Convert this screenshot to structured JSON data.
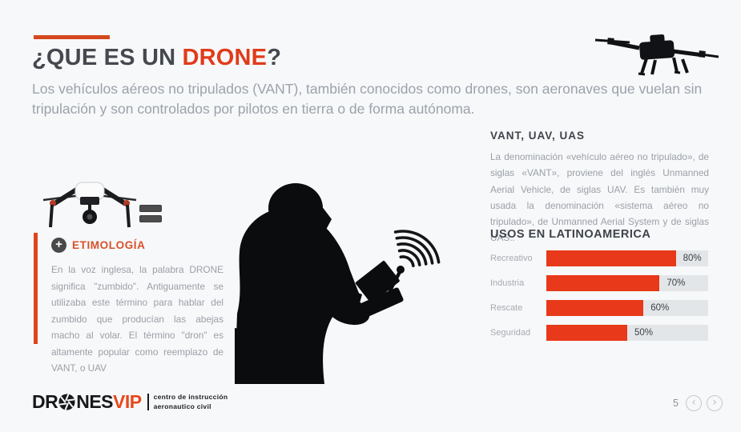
{
  "slide": {
    "title_prefix": "¿QUE ES UN ",
    "title_highlight": "DRONE",
    "title_suffix": "?",
    "subtitle": "Los vehículos aéreos no tripulados (VANT), también conocidos como drones, son aeronaves que vuelan sin tripulación y son controlados por pilotos en tierra o de forma autónoma."
  },
  "etimologia": {
    "heading": "ETIMOLOGÍA",
    "plus_glyph": "+",
    "body": "En la voz inglesa, la palabra DRONE significa \"zumbido\". Antiguamente se utilizaba este término para hablar del zumbido que producían las abejas macho al volar. El término \"dron\" es altamente popular como reemplazo de VANT, o UAV"
  },
  "vant": {
    "heading": "VANT, UAV, UAS",
    "body": "La denominación «vehículo aéreo no tripulado», de siglas «VANT», proviene del inglés Unmanned Aerial Vehicle, de siglas UAV. Es también muy usada la denominación «sistema aéreo no tripulado», de Unmanned Aerial System y de siglas UAS.."
  },
  "chart_data": {
    "type": "bar",
    "orientation": "horizontal",
    "title": "USOS EN LATINOAMERICA",
    "categories": [
      "Recreativo",
      "Industria",
      "Rescate",
      "Seguridad"
    ],
    "values": [
      80,
      70,
      60,
      50
    ],
    "value_labels": [
      "80%",
      "70%",
      "60%",
      "50%"
    ],
    "xlim": [
      0,
      100
    ],
    "bar_color": "#e8391a",
    "track_color": "#e3e6e8",
    "legend": false,
    "grid": false
  },
  "footer": {
    "brand_part1": "DR",
    "brand_part2": "NES",
    "brand_accent": "VIP",
    "tagline_line1": "centro de instrucción",
    "tagline_line2": "aeronautico civil",
    "page_number": "5",
    "prev_glyph": "‹",
    "next_glyph": "›"
  },
  "colors": {
    "background": "#f7f8f9",
    "accent_orange": "#e03c1b",
    "bar_orange": "#e8391a",
    "heading_dark": "#45494f",
    "body_gray": "#9aa0a8",
    "track_gray": "#e3e6e8"
  }
}
